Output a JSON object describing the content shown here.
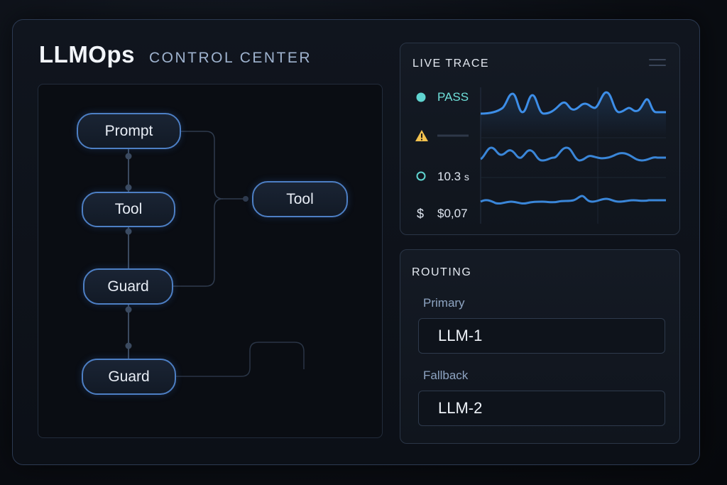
{
  "header": {
    "title": "LLMOps",
    "subtitle": "CONTROL CENTER"
  },
  "flow": {
    "nodes": {
      "prompt": "Prompt",
      "tool_left": "Tool",
      "guard_1": "Guard",
      "guard_2": "Guard",
      "tool_right": "Tool"
    }
  },
  "live_trace": {
    "title": "LIVE TRACE",
    "status_label": "PASS",
    "latency": "10.3",
    "latency_unit": "s",
    "cost_symbol": "$",
    "cost": "$0,07",
    "icons": [
      "status-dot-icon",
      "warning-icon",
      "ring-icon",
      "dollar-icon",
      "menu-icon"
    ]
  },
  "routing": {
    "title": "ROUTING",
    "primary_label": "Primary",
    "primary_value": "LLM-1",
    "fallback_label": "Fallback",
    "fallback_value": "LLM-2"
  },
  "colors": {
    "accent_blue": "#4d7fc4",
    "pass_teal": "#5fd4d0",
    "warning_yellow": "#f2c14e",
    "sparkline_blue": "#3d8ee8"
  }
}
